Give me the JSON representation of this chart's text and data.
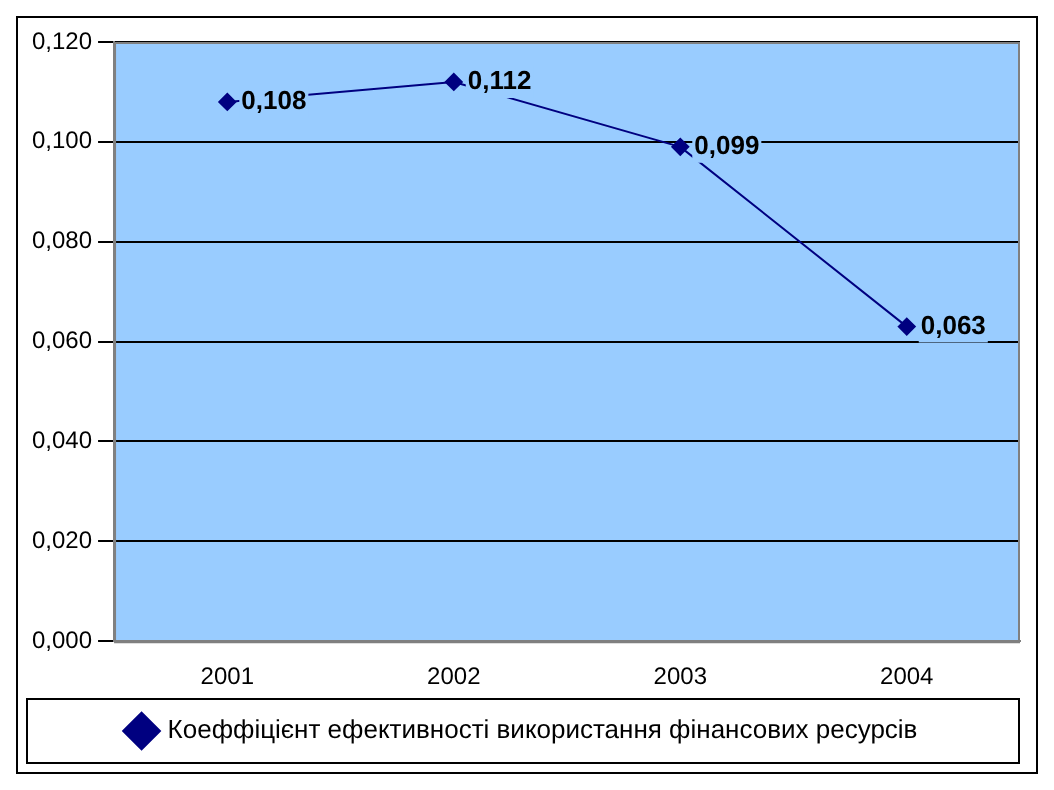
{
  "chart_data": {
    "type": "line",
    "categories": [
      "2001",
      "2002",
      "2003",
      "2004"
    ],
    "series": [
      {
        "name": "Коеффіцієнт ефективності використання фінансових ресурсів",
        "color": "#000080",
        "values": [
          0.108,
          0.112,
          0.099,
          0.063
        ],
        "value_labels": [
          "0,108",
          "0,112",
          "0,099",
          "0,063"
        ]
      }
    ],
    "ylim": [
      0,
      0.12
    ],
    "yticks": [
      {
        "value": 0,
        "label": "0,000"
      },
      {
        "value": 0.02,
        "label": "0,020"
      },
      {
        "value": 0.04,
        "label": "0,040"
      },
      {
        "value": 0.06,
        "label": "0,060"
      },
      {
        "value": 0.08,
        "label": "0,080"
      },
      {
        "value": 0.1,
        "label": "0,100"
      },
      {
        "value": 0.12,
        "label": "0,120"
      }
    ],
    "grid": "y",
    "legend": "bottom",
    "marker": "diamond",
    "line_style": "solid"
  }
}
